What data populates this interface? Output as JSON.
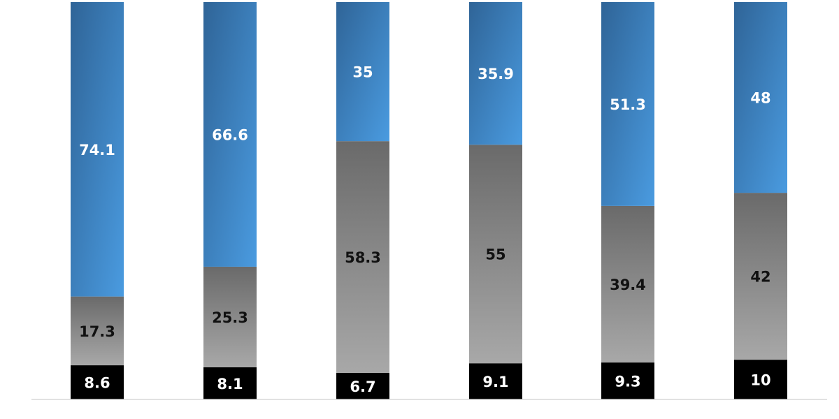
{
  "chart_data": {
    "type": "bar",
    "stacked": true,
    "normalized_to_percent": true,
    "categories": [
      "",
      "",
      "",
      "",
      "",
      ""
    ],
    "series": [
      {
        "values": [
          8.6,
          8.1,
          6.7,
          9.1,
          9.3,
          10
        ],
        "color": "#000000",
        "label_color": "#ffffff"
      },
      {
        "values": [
          17.3,
          25.3,
          58.3,
          55,
          39.4,
          42
        ],
        "color": "#8a8a8a",
        "label_color": "#111111"
      },
      {
        "values": [
          74.1,
          66.6,
          35,
          35.9,
          51.3,
          48
        ],
        "color": "#3f87c8",
        "label_color": "#ffffff"
      }
    ],
    "title": "",
    "xlabel": "",
    "ylabel": "",
    "grid": false,
    "legend": "none"
  }
}
